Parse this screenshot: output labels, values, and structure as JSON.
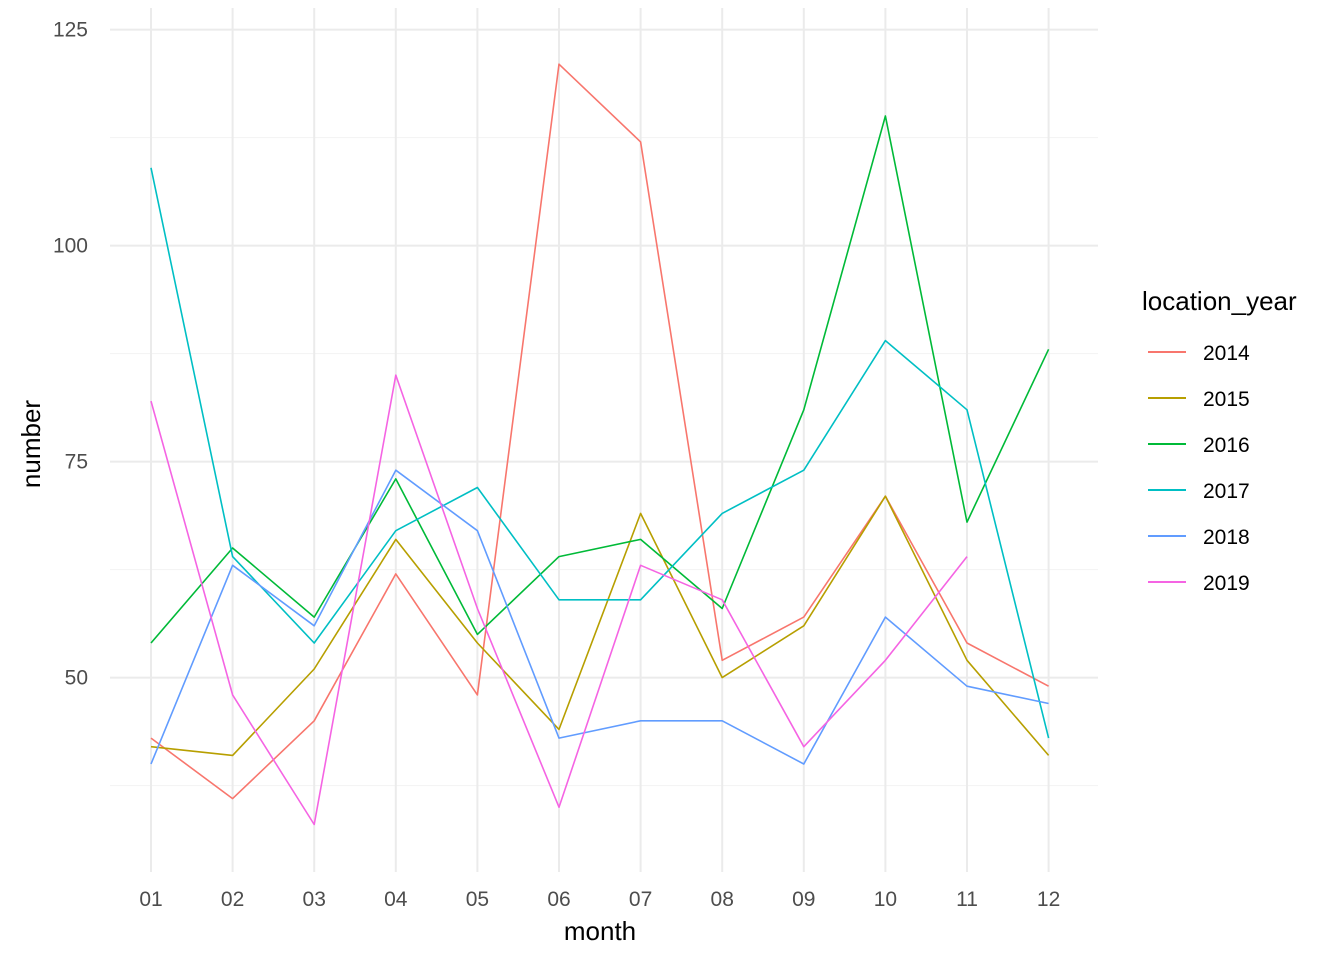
{
  "chart_data": {
    "type": "line",
    "title": "",
    "xlabel": "month",
    "ylabel": "number",
    "categories": [
      "01",
      "02",
      "03",
      "04",
      "05",
      "06",
      "07",
      "08",
      "09",
      "10",
      "11",
      "12"
    ],
    "ylim": [
      27.5,
      127.5
    ],
    "yticks": [
      50,
      75,
      100,
      125
    ],
    "grid": true,
    "legend": {
      "title": "location_year",
      "position": "right"
    },
    "series": [
      {
        "name": "2014",
        "color": "#F8766D",
        "values": [
          43,
          36,
          45,
          62,
          48,
          121,
          112,
          52,
          57,
          71,
          54,
          49
        ]
      },
      {
        "name": "2015",
        "color": "#B79F00",
        "values": [
          42,
          41,
          51,
          66,
          54,
          44,
          69,
          50,
          56,
          71,
          52,
          41
        ]
      },
      {
        "name": "2016",
        "color": "#00BA38",
        "values": [
          54,
          65,
          57,
          73,
          55,
          64,
          66,
          58,
          81,
          115,
          68,
          88
        ]
      },
      {
        "name": "2017",
        "color": "#00BFC4",
        "values": [
          109,
          64,
          54,
          67,
          72,
          59,
          59,
          69,
          74,
          89,
          81,
          43
        ]
      },
      {
        "name": "2018",
        "color": "#619CFF",
        "values": [
          40,
          63,
          56,
          74,
          67,
          43,
          45,
          45,
          40,
          57,
          49,
          47
        ]
      },
      {
        "name": "2019",
        "color": "#F564E3",
        "values": [
          82,
          48,
          33,
          85,
          58,
          35,
          63,
          59,
          42,
          52,
          64,
          null
        ]
      }
    ]
  }
}
